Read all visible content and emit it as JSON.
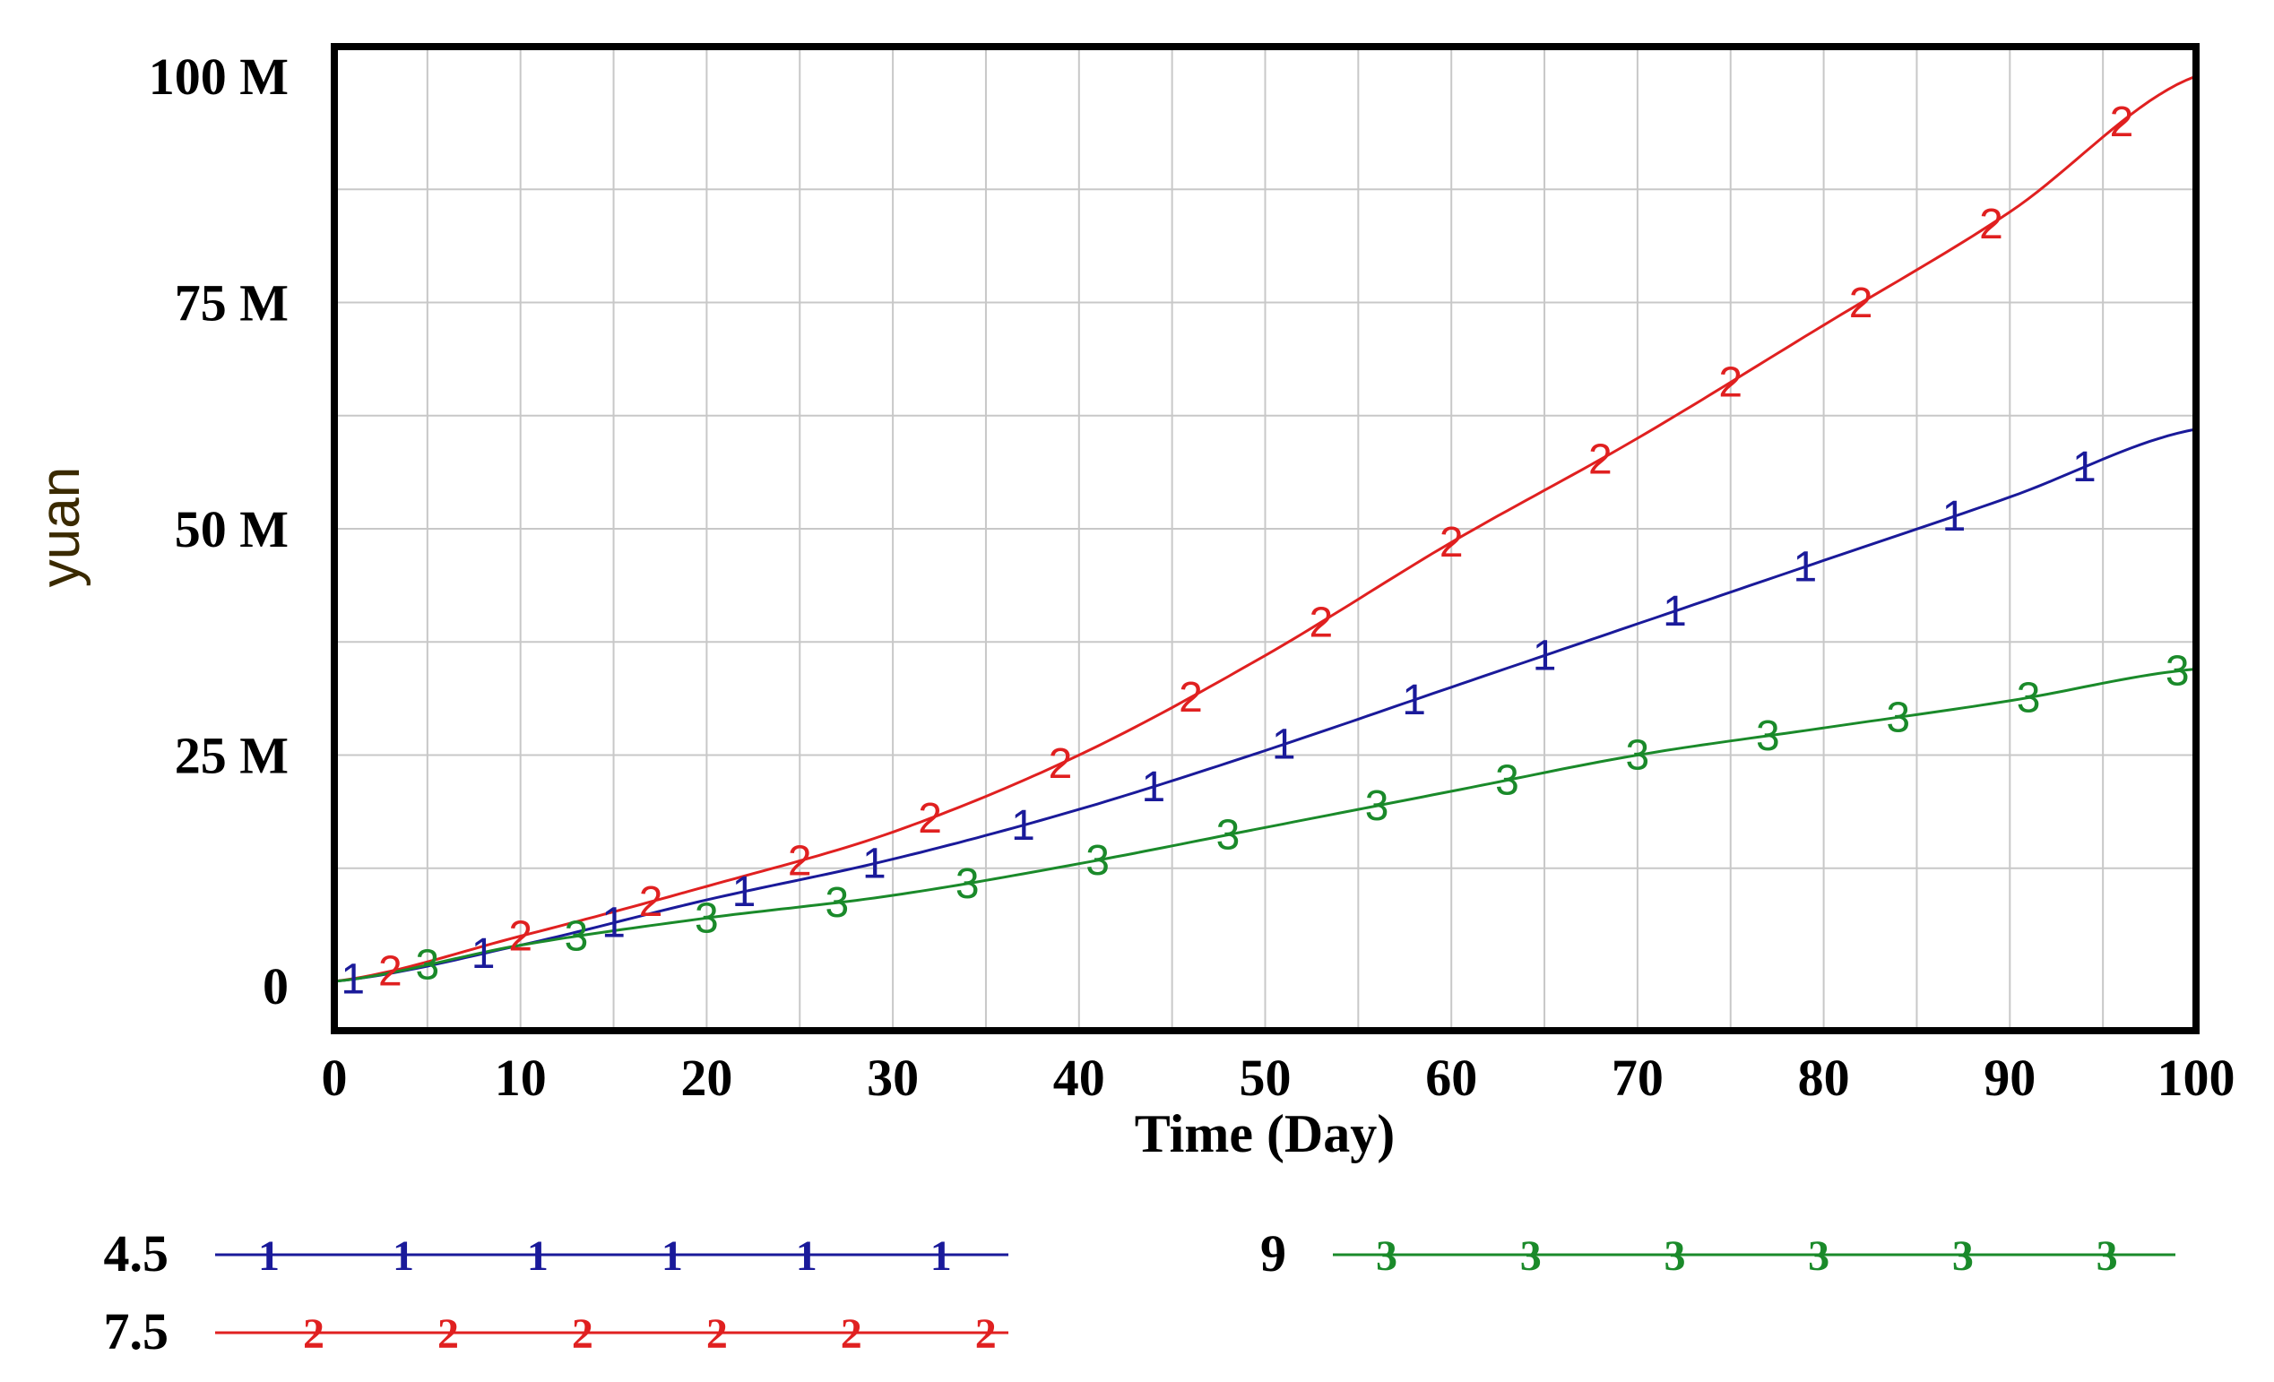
{
  "chart_data": {
    "type": "line",
    "title": "",
    "xlabel": "Time (Day)",
    "ylabel": "yuan",
    "xlim": [
      0,
      100
    ],
    "ylim": [
      0,
      100
    ],
    "y_unit_suffix": " M",
    "xticks": [
      "0",
      "10",
      "20",
      "30",
      "40",
      "50",
      "60",
      "70",
      "80",
      "90",
      "100"
    ],
    "yticks": [
      "0",
      "25 M",
      "50 M",
      "75 M",
      "100 M"
    ],
    "grid": true,
    "legend_position": "bottom",
    "x": [
      0,
      10,
      20,
      30,
      40,
      50,
      60,
      70,
      80,
      90,
      100
    ],
    "series": [
      {
        "name": "4.5",
        "marker": "1",
        "color": "#1a1a9a",
        "values": [
          0,
          4,
          9,
          13.5,
          19,
          25.5,
          32.5,
          39.5,
          46.5,
          53.5,
          61
        ],
        "marker_x": [
          1,
          8,
          15,
          22,
          29,
          37,
          44,
          51,
          58,
          65,
          72,
          79,
          87,
          94
        ]
      },
      {
        "name": "7.5",
        "marker": "2",
        "color": "#e02020",
        "values": [
          0,
          5,
          10.5,
          16.5,
          25,
          36,
          48.5,
          60,
          72.5,
          85,
          100
        ],
        "marker_x": [
          3,
          10,
          17,
          25,
          32,
          39,
          46,
          53,
          60,
          68,
          75,
          82,
          89,
          96
        ]
      },
      {
        "name": "9",
        "marker": "3",
        "color": "#1a8a2a",
        "values": [
          0,
          4,
          7,
          9.5,
          13,
          17,
          21,
          25,
          28,
          31,
          34.5
        ],
        "marker_x": [
          5,
          13,
          20,
          27,
          34,
          41,
          48,
          56,
          63,
          70,
          77,
          84,
          91,
          99
        ]
      }
    ]
  }
}
